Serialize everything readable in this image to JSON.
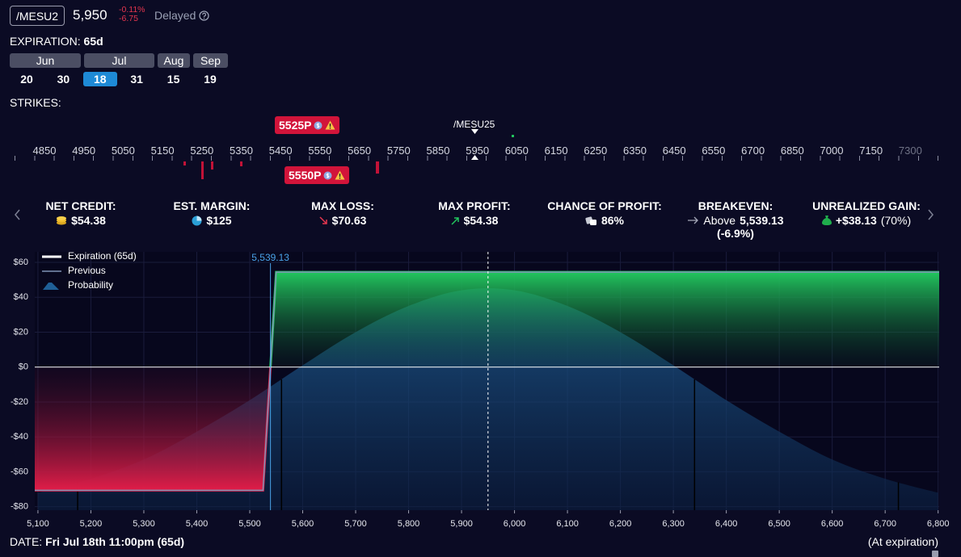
{
  "header": {
    "symbol": "/MESU2",
    "price": "5,950",
    "change_pct": "-0.11%",
    "change": "-6.75",
    "status": "Delayed"
  },
  "expiration": {
    "label": "EXPIRATION:",
    "value": "65d",
    "months": [
      "Jun",
      "Jul",
      "Aug",
      "Sep"
    ],
    "days": [
      "20",
      "30",
      "18",
      "31",
      "15",
      "19"
    ],
    "selected_day": 2
  },
  "strikes": {
    "label": "STRIKES:",
    "underlying": "/MESU25",
    "ticks": [
      "4850",
      "4950",
      "5050",
      "5150",
      "5250",
      "5350",
      "5450",
      "5550",
      "5650",
      "5750",
      "5850",
      "5950",
      "6050",
      "6150",
      "6250",
      "6350",
      "6450",
      "6550",
      "6700",
      "6850",
      "7000",
      "7150",
      "7300"
    ],
    "legs": [
      "5525P",
      "5550P"
    ]
  },
  "stats": [
    {
      "label": "NET CREDIT:",
      "value": "$54.38"
    },
    {
      "label": "EST. MARGIN:",
      "value": "$125"
    },
    {
      "label": "MAX LOSS:",
      "value": "$70.63"
    },
    {
      "label": "MAX PROFIT:",
      "value": "$54.38"
    },
    {
      "label": "CHANCE OF PROFIT:",
      "value": "86%"
    },
    {
      "label": "BREAKEVEN:",
      "prefix": "Above",
      "value": "5,539.13",
      "sub": "(-6.9%)"
    },
    {
      "label": "UNREALIZED GAIN:",
      "value": "+$38.13",
      "sub": "(70%)"
    }
  ],
  "chart_data": {
    "type": "line",
    "xlim": [
      5094,
      6802
    ],
    "ylim": [
      -82,
      66
    ],
    "xticks": [
      {
        "value": 5100,
        "label": "5,100"
      },
      {
        "value": 5200,
        "label": "5,200"
      },
      {
        "value": 5300,
        "label": "5,300"
      },
      {
        "value": 5400,
        "label": "5,400"
      },
      {
        "value": 5500,
        "label": "5,500"
      },
      {
        "value": 5600,
        "label": "5,600"
      },
      {
        "value": 5700,
        "label": "5,700"
      },
      {
        "value": 5800,
        "label": "5,800"
      },
      {
        "value": 5900,
        "label": "5,900"
      },
      {
        "value": 6000,
        "label": "6,000"
      },
      {
        "value": 6100,
        "label": "6,100"
      },
      {
        "value": 6200,
        "label": "6,200"
      },
      {
        "value": 6300,
        "label": "6,300"
      },
      {
        "value": 6400,
        "label": "6,400"
      },
      {
        "value": 6500,
        "label": "6,500"
      },
      {
        "value": 6600,
        "label": "6,600"
      },
      {
        "value": 6700,
        "label": "6,700"
      },
      {
        "value": 6800,
        "label": "6,800"
      }
    ],
    "yticks": [
      {
        "value": 60,
        "label": "$60"
      },
      {
        "value": 40,
        "label": "$40"
      },
      {
        "value": 20,
        "label": "$20"
      },
      {
        "value": 0,
        "label": "$0"
      },
      {
        "value": -20,
        "label": "-$20"
      },
      {
        "value": -40,
        "label": "-$40"
      },
      {
        "value": -60,
        "label": "-$60"
      },
      {
        "value": -80,
        "label": "-$80"
      }
    ],
    "grid": true,
    "legend": "top-left",
    "series": [
      {
        "name": "Expiration (65d)",
        "color": "#ffffff",
        "profit_color": "#22c55e",
        "loss_color": "#e11d48",
        "x": [
          5094,
          5525,
          5550,
          6802
        ],
        "values": [
          -70.63,
          -70.63,
          54.38,
          54.38
        ]
      },
      {
        "name": "Previous",
        "color": "#7f93b5",
        "x": [
          5094,
          5525,
          5550,
          6802
        ],
        "values": [
          -70.63,
          -70.63,
          54.38,
          54.38
        ]
      },
      {
        "name": "Probability",
        "type": "area",
        "color": "#1f5f96",
        "x": [
          5100,
          5200,
          5300,
          5400,
          5500,
          5600,
          5700,
          5800,
          5900,
          6000,
          6100,
          6200,
          6300,
          6400,
          6500,
          6600,
          6700,
          6800
        ],
        "values": [
          -72,
          -64,
          -53,
          -37,
          -19,
          1,
          20,
          35,
          44,
          44,
          35,
          20,
          1,
          -19,
          -37,
          -53,
          -64,
          -72
        ]
      }
    ],
    "breakeven": {
      "x": 5539.13,
      "label": "5,539.13"
    },
    "spot": 5950,
    "sd_lines": [
      5175,
      5560,
      6340,
      6725
    ]
  },
  "footer": {
    "date_label": "DATE:",
    "date": "Fri Jul 18th 11:00pm (65d)",
    "note": "(At expiration)"
  }
}
